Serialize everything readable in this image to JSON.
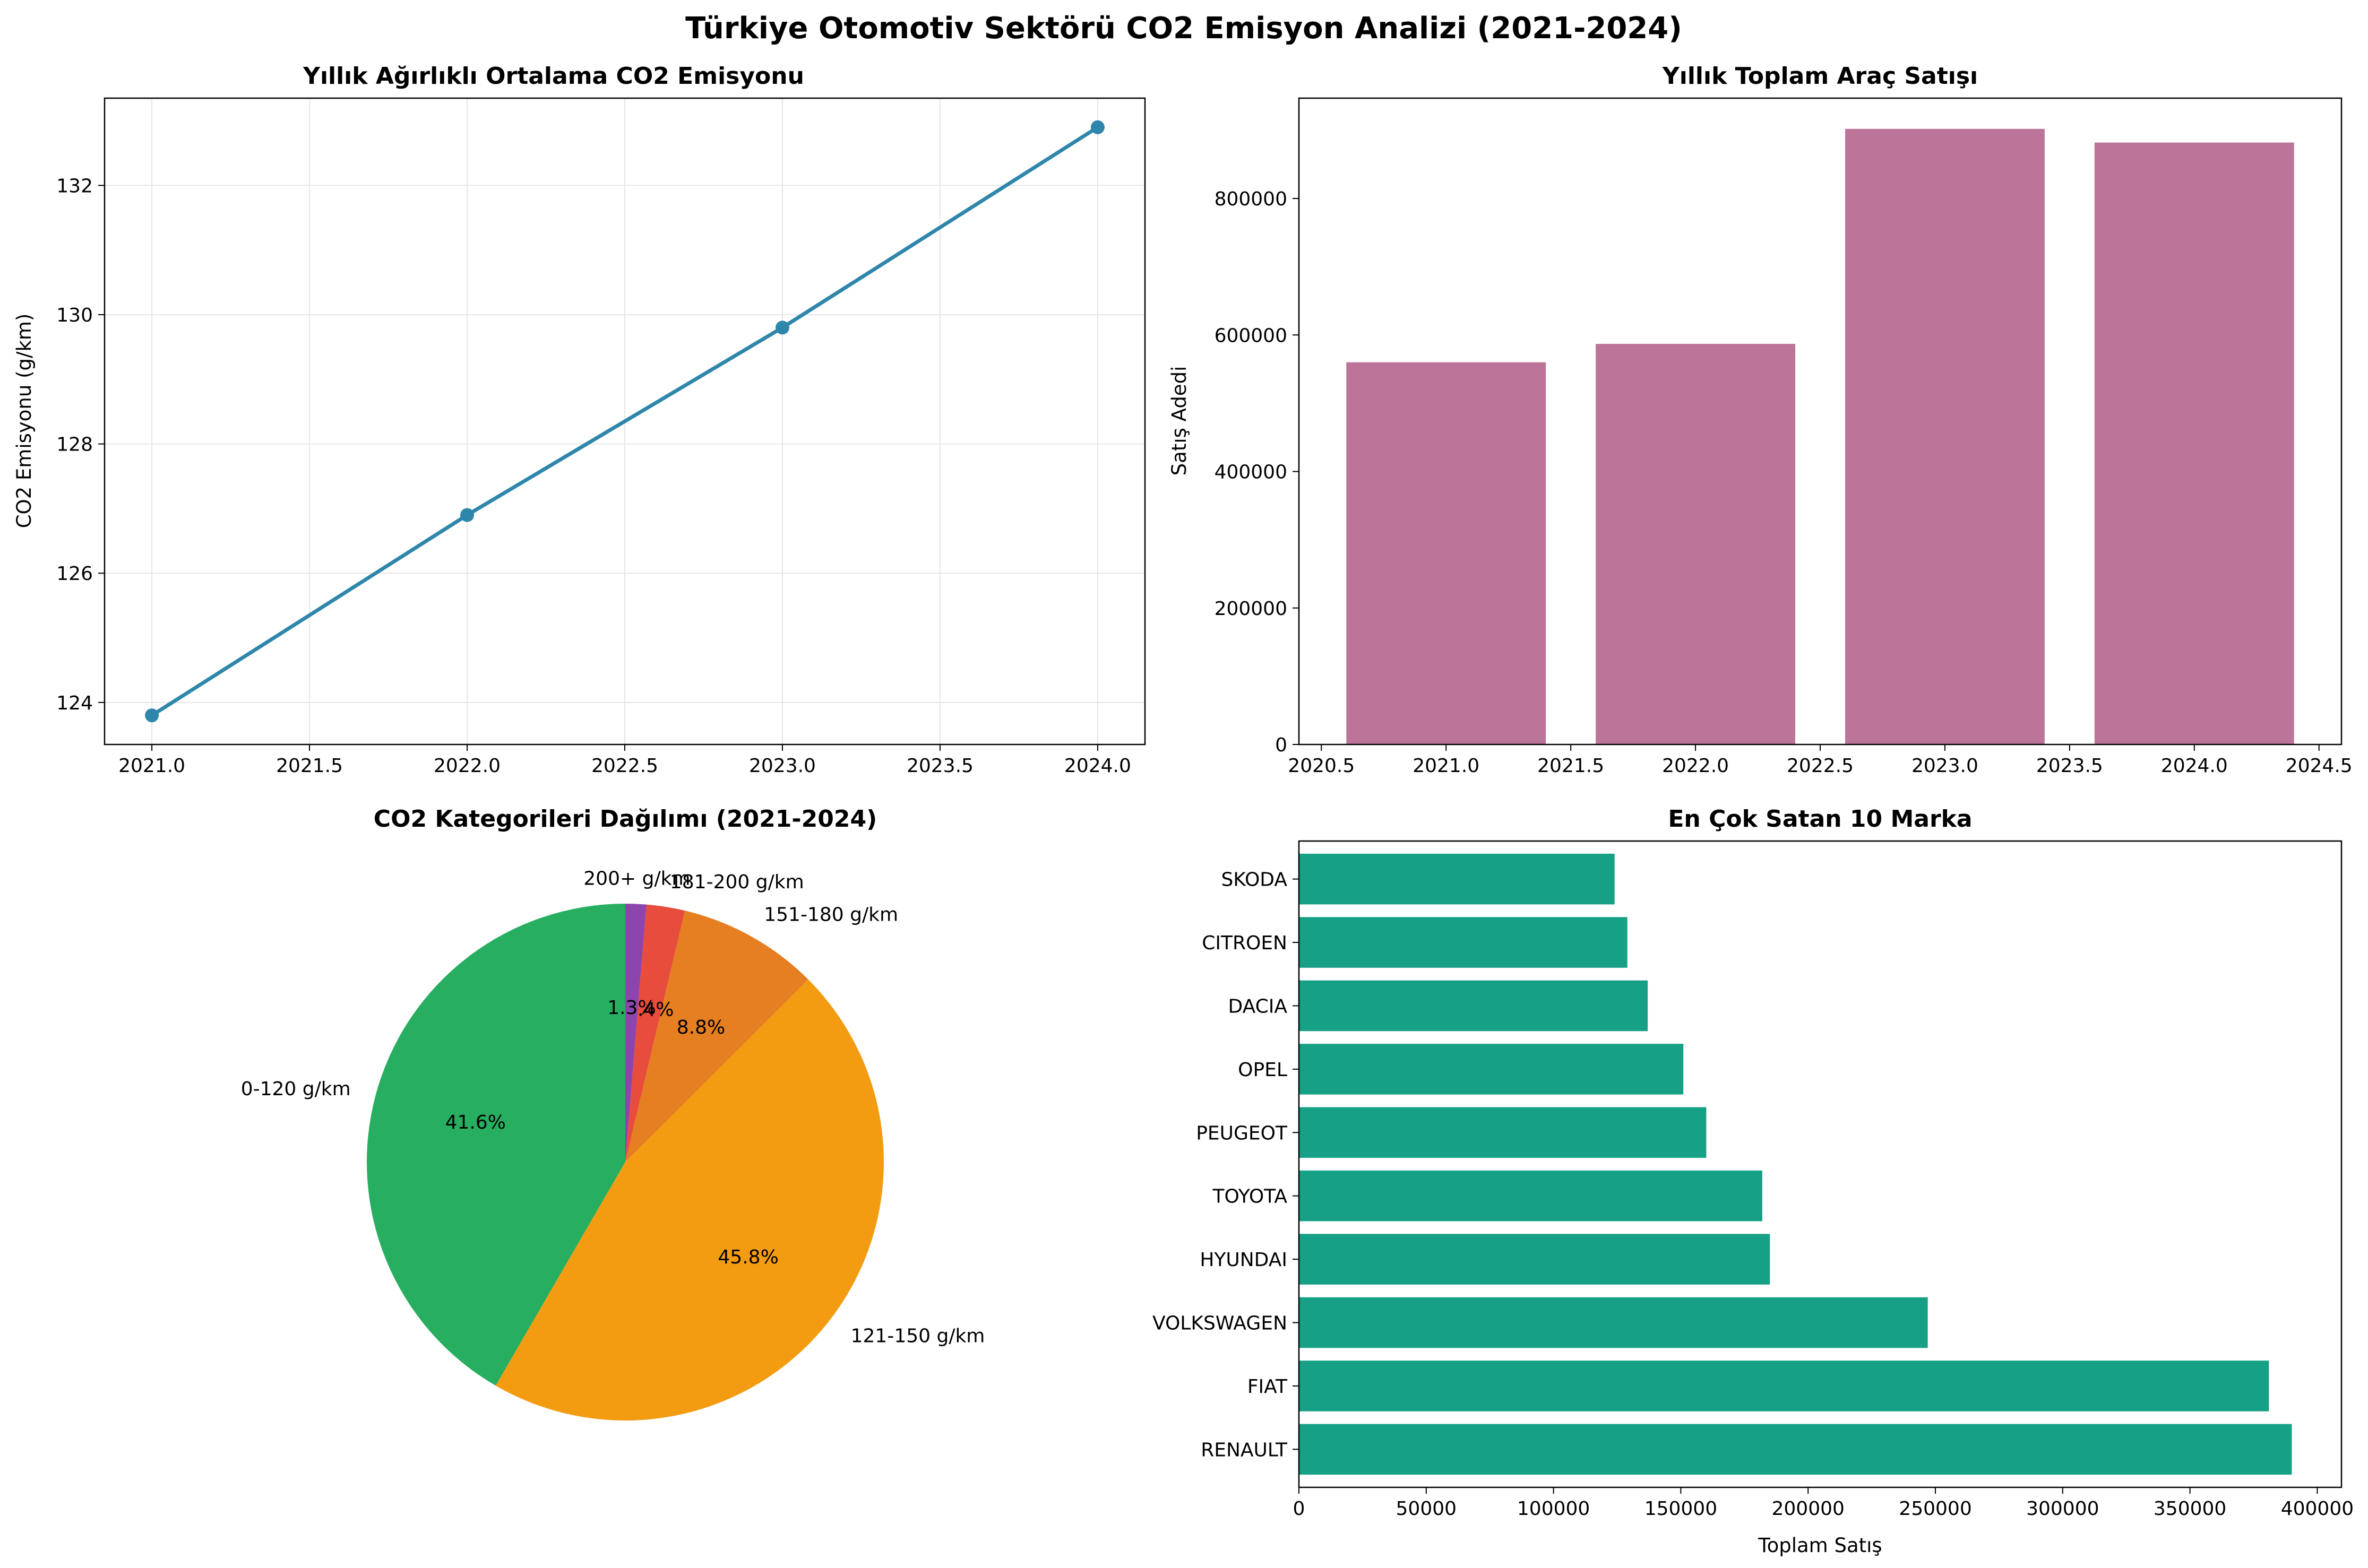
{
  "suptitle": "Türkiye Otomotiv Sektörü CO2 Emisyon Analizi (2021-2024)",
  "colors": {
    "line": "#2e86ab",
    "bar": "#bc7599",
    "barh": "#16a085",
    "pie": [
      "#27ae60",
      "#f39c12",
      "#e67e22",
      "#e74c3c",
      "#8e44ad"
    ],
    "grid": "#e6e6e6"
  },
  "chart_data": [
    {
      "type": "line",
      "title": "Yıllık Ağırlıklı Ortalama CO2 Emisyonu",
      "xlabel": "",
      "ylabel": "CO2 Emisyonu (g/km)",
      "x": [
        2021,
        2022,
        2023,
        2024
      ],
      "values": [
        123.8,
        126.9,
        129.8,
        132.9
      ],
      "xlim": [
        2020.85,
        2024.15
      ],
      "ylim": [
        123.35,
        133.35
      ],
      "xticks": [
        "2021.0",
        "2021.5",
        "2022.0",
        "2022.5",
        "2023.0",
        "2023.5",
        "2024.0"
      ],
      "yticks": [
        "124",
        "126",
        "128",
        "130",
        "132"
      ],
      "grid": true,
      "markers": true
    },
    {
      "type": "bar",
      "title": "Yıllık Toplam Araç Satışı",
      "xlabel": "",
      "ylabel": "Satış Adedi",
      "x": [
        2021,
        2022,
        2023,
        2024
      ],
      "values": [
        560000,
        587000,
        902000,
        882000
      ],
      "bar_width": 0.8,
      "xlim": [
        2020.41,
        2024.59
      ],
      "ylim": [
        0,
        947000
      ],
      "xticks": [
        "2020.5",
        "2021.0",
        "2021.5",
        "2022.0",
        "2022.5",
        "2023.0",
        "2023.5",
        "2024.0",
        "2024.5"
      ],
      "yticks": [
        "0",
        "200000",
        "400000",
        "600000",
        "800000"
      ],
      "grid": false
    },
    {
      "type": "pie",
      "title": "CO2 Kategorileri Dağılımı (2021-2024)",
      "labels": [
        "0-120 g/km",
        "121-150 g/km",
        "151-180 g/km",
        "181-200 g/km",
        "200+ g/km"
      ],
      "values": [
        41.6,
        45.8,
        8.8,
        2.4,
        1.3
      ],
      "pct_labels": [
        "41.6%",
        "45.8%",
        "8.8%",
        "2.4%",
        "1.3%"
      ],
      "start_angle_deg": 90,
      "direction": "counterclockwise"
    },
    {
      "type": "bar",
      "orientation": "horizontal",
      "title": "En Çok Satan 10 Marka",
      "xlabel": "Toplam Satış",
      "ylabel": "",
      "categories": [
        "RENAULT",
        "FIAT",
        "VOLKSWAGEN",
        "HYUNDAI",
        "TOYOTA",
        "PEUGEOT",
        "OPEL",
        "DACIA",
        "CITROEN",
        "SKODA"
      ],
      "values": [
        390000,
        381000,
        247000,
        185000,
        182000,
        160000,
        151000,
        137000,
        129000,
        124000
      ],
      "xlim": [
        0,
        409500
      ],
      "xticks": [
        "0",
        "50000",
        "100000",
        "150000",
        "200000",
        "250000",
        "300000",
        "350000",
        "400000"
      ],
      "grid": false
    }
  ]
}
